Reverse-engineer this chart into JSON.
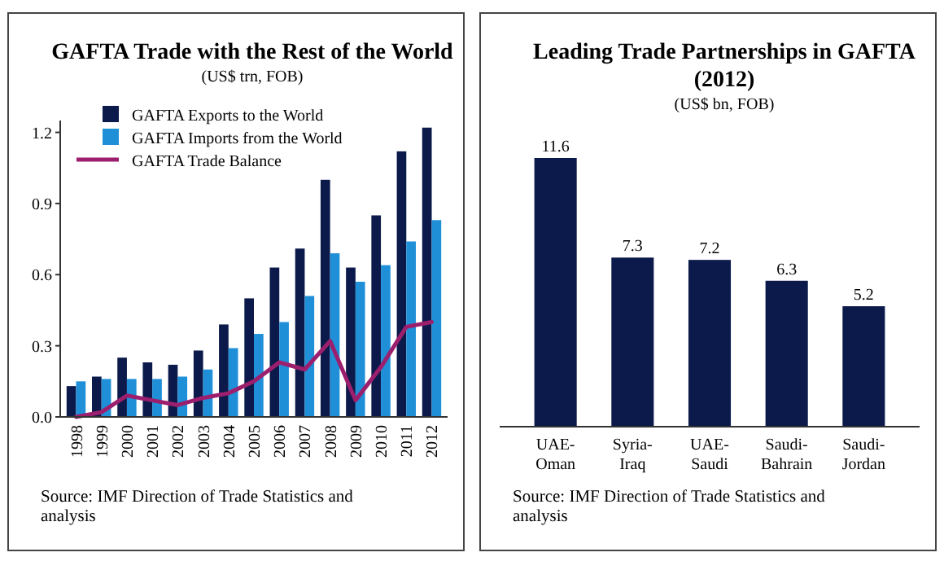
{
  "chart_data": [
    {
      "type": "bar",
      "title": "GAFTA Trade with the Rest of the World",
      "subtitle": "(US$ trn, FOB)",
      "categories": [
        "1998",
        "1999",
        "2000",
        "2001",
        "2002",
        "2003",
        "2004",
        "2005",
        "2006",
        "2007",
        "2008",
        "2009",
        "2010",
        "2011",
        "2012"
      ],
      "series": [
        {
          "name": "GAFTA Exports to the World",
          "color": "#0b1a4a",
          "values": [
            0.13,
            0.17,
            0.25,
            0.23,
            0.22,
            0.28,
            0.39,
            0.5,
            0.63,
            0.71,
            1.0,
            0.63,
            0.85,
            1.12,
            1.22
          ]
        },
        {
          "name": "GAFTA Imports from the World",
          "color": "#1f8fd8",
          "values": [
            0.15,
            0.16,
            0.16,
            0.16,
            0.17,
            0.2,
            0.29,
            0.35,
            0.4,
            0.51,
            0.69,
            0.57,
            0.64,
            0.74,
            0.83
          ]
        },
        {
          "name": "GAFTA Trade Balance",
          "type": "line",
          "color": "#9c1f6e",
          "values": [
            0.0,
            0.02,
            0.09,
            0.07,
            0.05,
            0.08,
            0.1,
            0.15,
            0.23,
            0.2,
            0.32,
            0.07,
            0.21,
            0.38,
            0.4
          ]
        }
      ],
      "ylim": [
        0,
        1.25
      ],
      "yticks": [
        {
          "value": 0,
          "label": "0.0"
        },
        0.3,
        0.6,
        0.9,
        1.2
      ],
      "grid": false,
      "legend": "top left",
      "marker": "none",
      "line_style": "solid",
      "annotations": [
        "Source: IMF Direction of Trade Statistics and analysis"
      ]
    },
    {
      "type": "bar",
      "title": "Leading Trade Partnerships in GAFTA (2012)",
      "subtitle": "(US$ bn, FOB)",
      "categories": [
        "UAE-Oman",
        "Syria-Iraq",
        "UAE-Saudi",
        "Saudi-Bahrain",
        "Saudi-Jordan"
      ],
      "values": [
        11.6,
        7.3,
        7.2,
        6.3,
        5.2
      ],
      "color": "#0b1a4a",
      "data_labels": true,
      "tick_labels": "x",
      "annotations": [
        "Source: IMF Direction of Trade Statistics and analysis"
      ]
    }
  ]
}
